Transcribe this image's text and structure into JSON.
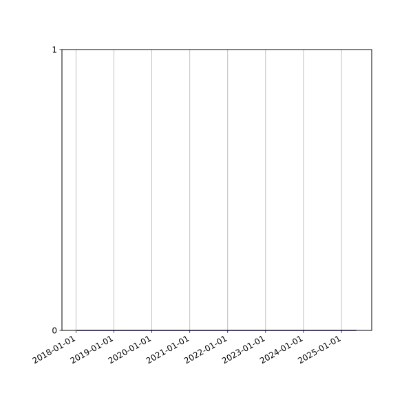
{
  "chart_data": {
    "type": "line",
    "title": "",
    "xlabel": "",
    "ylabel": "",
    "x_axis_type": "date",
    "xlim": [
      "2017-08-19",
      "2025-10-19"
    ],
    "ylim": [
      0,
      1
    ],
    "x_ticks": [
      "2018-01-01",
      "2019-01-01",
      "2020-01-01",
      "2021-01-01",
      "2022-01-01",
      "2023-01-01",
      "2024-01-01",
      "2025-01-01"
    ],
    "y_ticks": [
      "0",
      "1"
    ],
    "grid": {
      "x": true,
      "y": false
    },
    "series": [
      {
        "x": [
          "2018-01-11",
          "2025-05-24"
        ],
        "y": [
          0,
          0
        ],
        "color": "#1f1f8f"
      }
    ],
    "colors": {
      "grid": "#b0b0b0",
      "axes": "#000000"
    }
  }
}
